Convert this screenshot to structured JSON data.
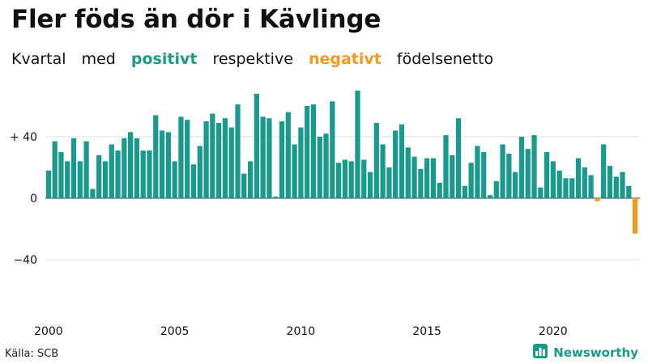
{
  "title": "Fler föds än dör i Kävlinge",
  "subtitle": {
    "part1": "Kvartal",
    "part2": "med",
    "positive": "positivt",
    "part3": "respektive",
    "negative": "negativt",
    "part4": "födelsenetto"
  },
  "source": "Källa: SCB",
  "brand": "Newsworthy",
  "colors": {
    "positive": "#1a9a8c",
    "negative": "#f29a1f",
    "grid": "#dddddd",
    "zero": "#333333"
  },
  "chart_data": {
    "type": "bar",
    "x_start": "2000 Q1",
    "values": [
      18,
      37,
      30,
      24,
      39,
      24,
      37,
      6,
      28,
      24,
      35,
      31,
      39,
      43,
      39,
      31,
      31,
      54,
      44,
      43,
      24,
      53,
      51,
      22,
      34,
      50,
      55,
      49,
      52,
      46,
      61,
      16,
      24,
      68,
      53,
      52,
      1,
      50,
      56,
      35,
      46,
      60,
      61,
      40,
      42,
      63,
      23,
      25,
      24,
      70,
      25,
      17,
      49,
      35,
      20,
      44,
      48,
      33,
      27,
      19,
      26,
      26,
      10,
      41,
      28,
      52,
      8,
      23,
      34,
      30,
      2,
      11,
      35,
      29,
      17,
      40,
      32,
      41,
      7,
      30,
      24,
      18,
      13,
      13,
      26,
      20,
      15,
      -2,
      35,
      21,
      14,
      17,
      8,
      -23
    ],
    "ylim": [
      -80,
      80
    ],
    "yticks": [
      40,
      0,
      -40
    ],
    "ytick_labels": [
      "+ 40",
      "0",
      "−40"
    ],
    "xticks": [
      2000,
      2005,
      2010,
      2015,
      2020
    ],
    "xtick_labels": [
      "2000",
      "2005",
      "2010",
      "2015",
      "2020"
    ],
    "grid": true
  }
}
